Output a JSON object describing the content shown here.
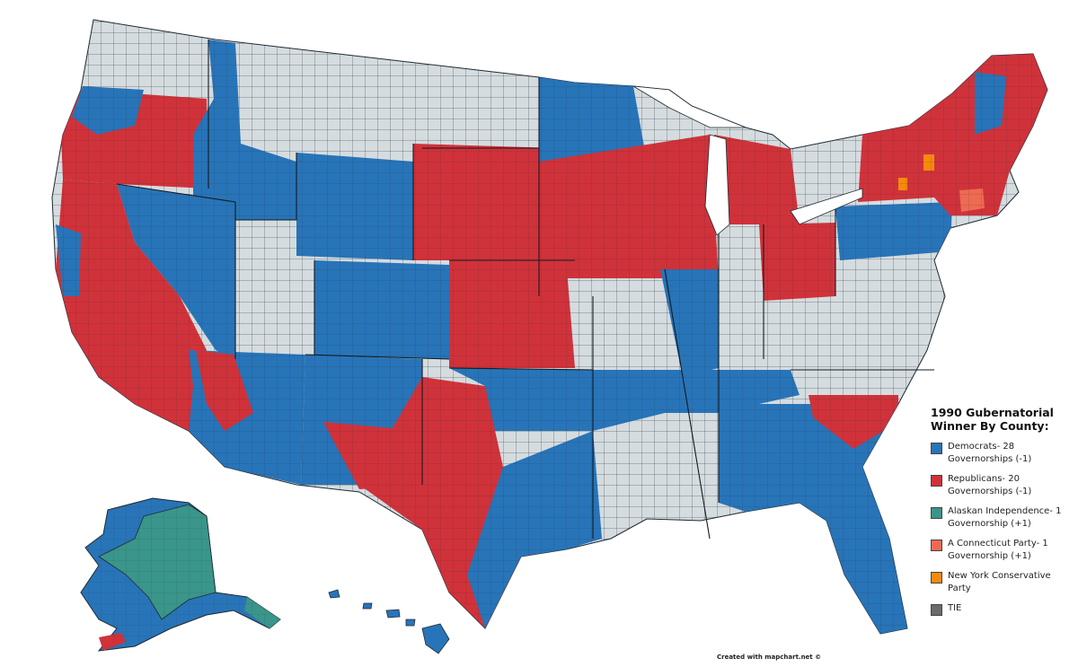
{
  "legend": {
    "title": "1990 Gubernatorial Winner By County:",
    "items": [
      {
        "label": "Democrats- 28 Governorships (-1)",
        "color": "#2874b8"
      },
      {
        "label": "Republicans- 20 Governorships (-1)",
        "color": "#d0323a"
      },
      {
        "label": "Alaskan Independence- 1 Governorship (+1)",
        "color": "#3a958a"
      },
      {
        "label": "A Connecticut Party- 1 Governorship (+1)",
        "color": "#ee6a52"
      },
      {
        "label": "New York Conservative Party",
        "color": "#f78a0d"
      },
      {
        "label": "TIE",
        "color": "#6b6b6b"
      }
    ]
  },
  "credit": "Created with mapchart.net ©",
  "colors": {
    "no_election": "#d5dcdf",
    "border": "#1f2a33"
  }
}
